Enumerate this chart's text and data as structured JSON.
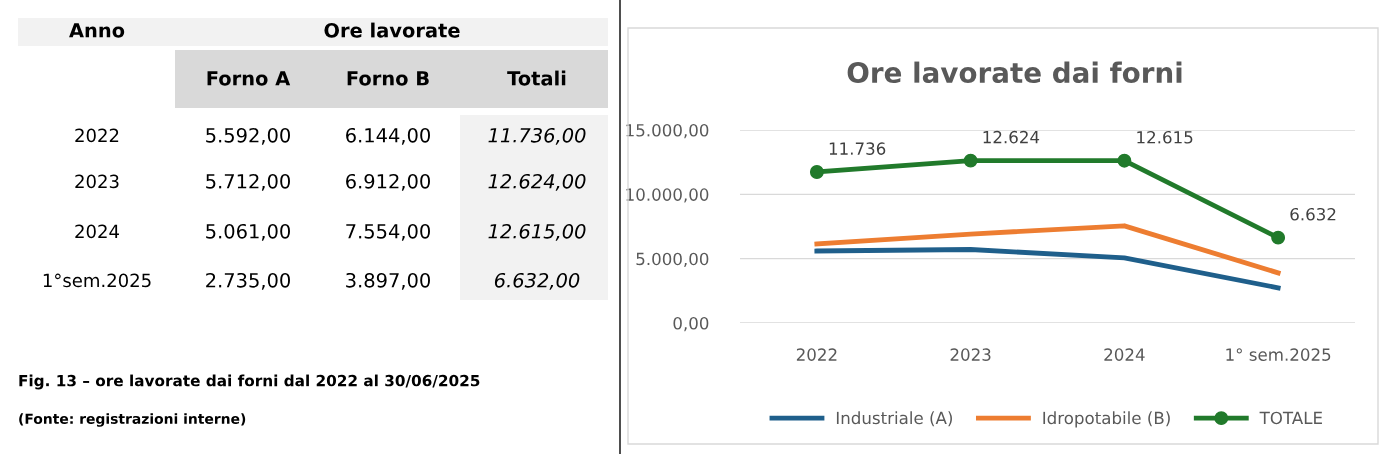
{
  "chart_data": [
    {
      "type": "other",
      "title": "Ore lavorate",
      "xlabel": "Anno",
      "categories": [
        "2022",
        "2023",
        "2024",
        "1°sem.2025"
      ],
      "data_labels": true,
      "series": [
        {
          "name": "Forno A",
          "values": [
            5592,
            5712,
            5061,
            2735
          ],
          "value_labels": [
            "5.592,00",
            "5.712,00",
            "5.061,00",
            "2.735,00"
          ]
        },
        {
          "name": "Forno B",
          "values": [
            6144,
            6912,
            7554,
            3897
          ],
          "value_labels": [
            "6.144,00",
            "6.912,00",
            "7.554,00",
            "3.897,00"
          ]
        },
        {
          "name": "Totali",
          "values": [
            11736,
            12624,
            12615,
            6632
          ],
          "value_labels": [
            "11.736,00",
            "12.624,00",
            "12.615,00",
            "6.632,00"
          ]
        }
      ],
      "annotations": [
        "Fig. 13 – ore lavorate dai forni dal 2022 al 30/06/2025",
        "(Fonte: registrazioni interne)"
      ]
    },
    {
      "type": "line",
      "title": "Ore lavorate dai forni",
      "categories": [
        "2022",
        "2023",
        "2024",
        "1° sem.2025"
      ],
      "ylim": [
        0,
        15000
      ],
      "yticks": [
        {
          "value": 0,
          "label": "0,00"
        },
        {
          "value": 5000,
          "label": "5.000,00"
        },
        {
          "value": 10000,
          "label": "10.000,00"
        },
        {
          "value": 15000,
          "label": "15.000,00"
        }
      ],
      "grid": "y",
      "legend": "bottom",
      "series": [
        {
          "name": "Industriale (A)",
          "color": "#1f5f8b",
          "marker": "none",
          "values": [
            5592,
            5712,
            5061,
            2735
          ]
        },
        {
          "name": "Idropotabile (B)",
          "color": "#ed7d31",
          "marker": "none",
          "values": [
            6144,
            6912,
            7554,
            3897
          ]
        },
        {
          "name": "TOTALE",
          "color": "#217a2b",
          "marker": "circle",
          "values": [
            11736,
            12624,
            12615,
            6632
          ],
          "value_labels": [
            "11.736",
            "12.624",
            "12.615",
            "6.632"
          ]
        }
      ]
    }
  ]
}
